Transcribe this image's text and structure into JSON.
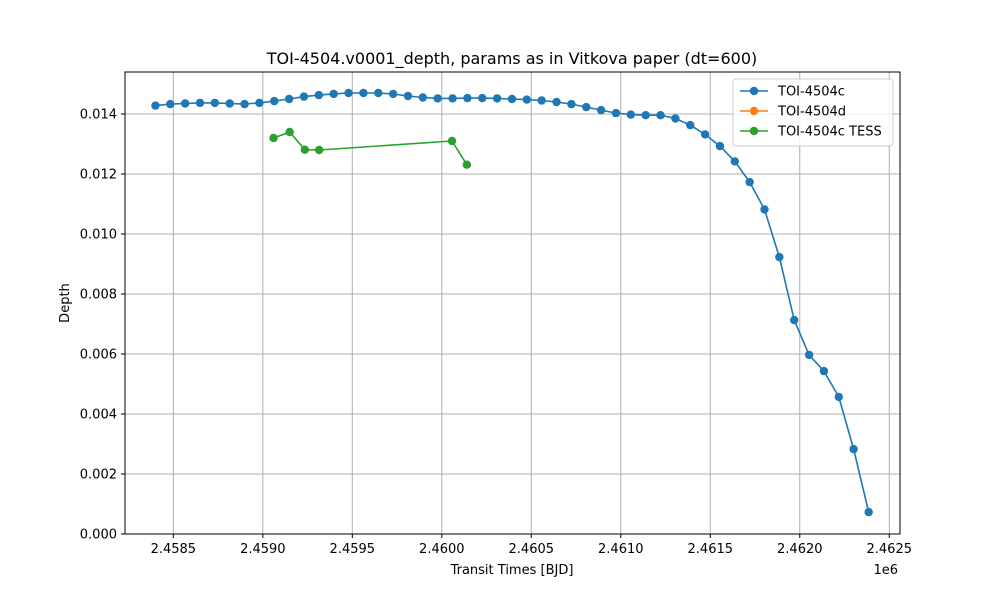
{
  "chart_data": {
    "type": "line",
    "title": "TOI-4504.v0001_depth, params as in Vitkova paper (dt=600)",
    "xlabel": "Transit Times [BJD]",
    "ylabel": "Depth",
    "x_offset_label": "1e6",
    "xlim": [
      2458230,
      2462560
    ],
    "ylim": [
      0.0,
      0.0154
    ],
    "x_ticks": [
      2.4585,
      2.459,
      2.4595,
      2.46,
      2.4605,
      2.461,
      2.4615,
      2.462,
      2.4625
    ],
    "x_tick_labels": [
      "2.4585",
      "2.4590",
      "2.4595",
      "2.4600",
      "2.4605",
      "2.4610",
      "2.4615",
      "2.4620",
      "2.4625"
    ],
    "y_ticks": [
      0.0,
      0.002,
      0.004,
      0.006,
      0.008,
      0.01,
      0.012,
      0.014
    ],
    "y_tick_labels": [
      "0.000",
      "0.002",
      "0.004",
      "0.006",
      "0.008",
      "0.010",
      "0.012",
      "0.014"
    ],
    "grid": true,
    "legend_position": "top-right",
    "series": [
      {
        "name": "TOI-4504c",
        "color": "#1f77b4",
        "x": [
          2458400,
          2458483,
          2458566,
          2458649,
          2458732,
          2458815,
          2458898,
          2458981,
          2459064,
          2459147,
          2459230,
          2459313,
          2459396,
          2459479,
          2459562,
          2459645,
          2459728,
          2459811,
          2459894,
          2459977,
          2460060,
          2460143,
          2460226,
          2460309,
          2460392,
          2460475,
          2460558,
          2460641,
          2460724,
          2460807,
          2460890,
          2460973,
          2461056,
          2461139,
          2461222,
          2461305,
          2461388,
          2461471,
          2461554,
          2461637,
          2461720,
          2461803,
          2461886,
          2461969,
          2462052,
          2462135,
          2462218,
          2462301,
          2462385
        ],
        "y": [
          0.01428,
          0.01433,
          0.01435,
          0.01437,
          0.01437,
          0.01435,
          0.01433,
          0.01437,
          0.01443,
          0.0145,
          0.01458,
          0.01463,
          0.01467,
          0.0147,
          0.0147,
          0.0147,
          0.01467,
          0.0146,
          0.01455,
          0.01452,
          0.01452,
          0.01453,
          0.01453,
          0.01452,
          0.0145,
          0.01448,
          0.01445,
          0.0144,
          0.01433,
          0.01423,
          0.01413,
          0.01403,
          0.01398,
          0.01396,
          0.01396,
          0.01385,
          0.01363,
          0.01332,
          0.01293,
          0.01242,
          0.01173,
          0.01082,
          0.00923,
          0.00713,
          0.00597,
          0.00543,
          0.00457,
          0.00283,
          0.00073
        ]
      },
      {
        "name": "TOI-4504d",
        "color": "#ff7f0e",
        "x": [],
        "y": []
      },
      {
        "name": "TOI-4504c TESS",
        "color": "#2ca02c",
        "x": [
          2459060,
          2459150,
          2459235,
          2459315,
          2460057,
          2460140
        ],
        "y": [
          0.0132,
          0.0134,
          0.01281,
          0.0128,
          0.0131,
          0.01231
        ]
      }
    ]
  }
}
